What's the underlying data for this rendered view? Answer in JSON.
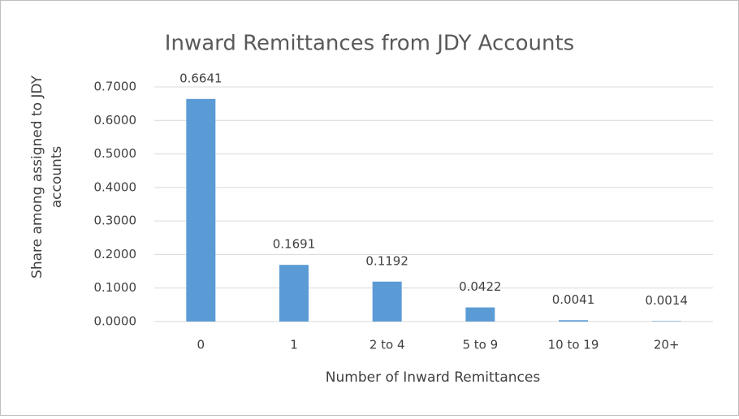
{
  "chart_data": {
    "type": "bar",
    "title": "Inward Remittances from JDY Accounts",
    "xlabel": "Number of Inward Remittances",
    "ylabel": [
      "Share among assigned to JDY",
      "accounts"
    ],
    "categories": [
      "0",
      "1",
      "2 to 4",
      "5 to 9",
      "10 to 19",
      "20+"
    ],
    "values": [
      0.6641,
      0.1691,
      0.1192,
      0.0422,
      0.0041,
      0.0014
    ],
    "color": "#5b9bd5",
    "ylim": [
      0,
      0.7
    ],
    "yticks": [
      {
        "value": 0,
        "label": "0.0000"
      },
      {
        "value": 0.1,
        "label": "0.1000"
      },
      {
        "value": 0.2,
        "label": "0.2000"
      },
      {
        "value": 0.3,
        "label": "0.3000"
      },
      {
        "value": 0.4,
        "label": "0.4000"
      },
      {
        "value": 0.5,
        "label": "0.5000"
      },
      {
        "value": 0.6,
        "label": "0.6000"
      },
      {
        "value": 0.7,
        "label": "0.7000"
      }
    ],
    "grid": true
  }
}
